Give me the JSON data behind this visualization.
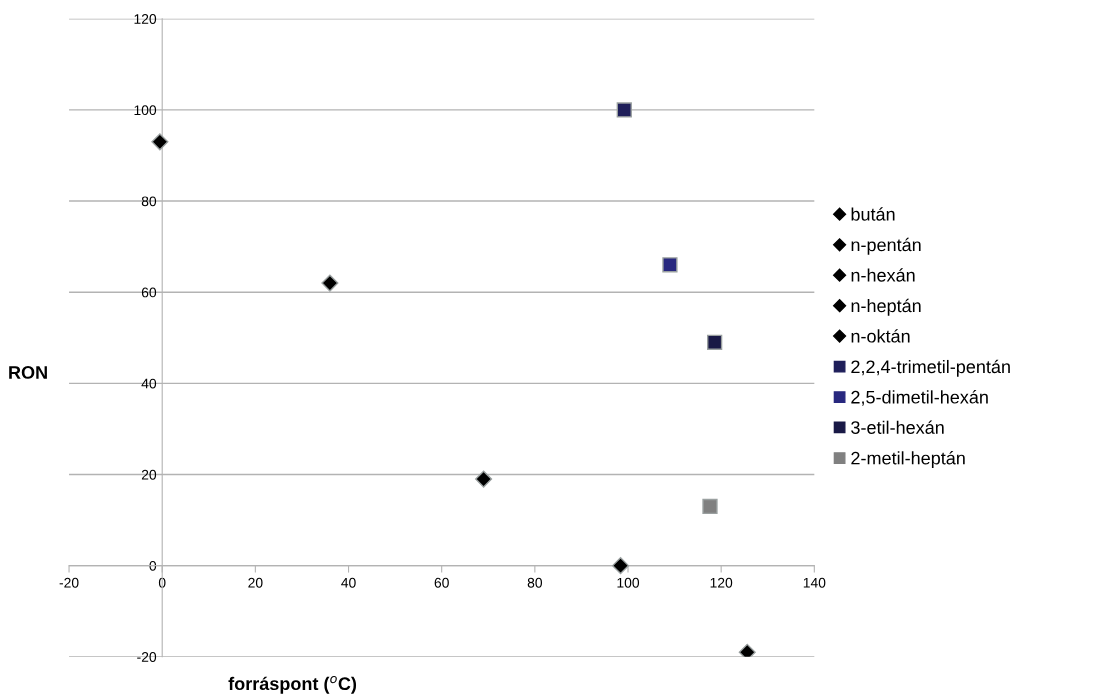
{
  "chart_data": {
    "type": "scatter",
    "xlabel": "forráspont ($^{o}$C)",
    "ylabel": "RON",
    "xlim": [
      -20,
      140
    ],
    "xticks": [
      -20,
      0,
      20,
      40,
      60,
      80,
      100,
      120,
      140
    ],
    "ylim": [
      -20,
      120
    ],
    "yticks": [
      -20,
      0,
      20,
      40,
      60,
      80,
      100,
      120
    ],
    "grid": "y",
    "legend": "right",
    "series": [
      {
        "name": "bután",
        "color": "#000000",
        "marker": "diamond",
        "x": [
          -0.5
        ],
        "values": [
          93
        ]
      },
      {
        "name": "n-pentán",
        "color": "#000000",
        "marker": "diamond",
        "x": [
          36
        ],
        "values": [
          62
        ]
      },
      {
        "name": "n-hexán",
        "color": "#000000",
        "marker": "diamond",
        "x": [
          69
        ],
        "values": [
          19
        ]
      },
      {
        "name": "n-heptán",
        "color": "#000000",
        "marker": "diamond",
        "x": [
          98.4
        ],
        "values": [
          0
        ]
      },
      {
        "name": "n-oktán",
        "color": "#000000",
        "marker": "diamond",
        "x": [
          125.6
        ],
        "values": [
          -19
        ]
      },
      {
        "name": "2,2,4-trimetil-pentán",
        "color": "#1f1f5a",
        "marker": "square",
        "x": [
          99.2
        ],
        "values": [
          100
        ]
      },
      {
        "name": "2,5-dimetil-hexán",
        "color": "#28287f",
        "marker": "square",
        "x": [
          109
        ],
        "values": [
          66
        ]
      },
      {
        "name": "3-etil-hexán",
        "color": "#191946",
        "marker": "square",
        "x": [
          118.6
        ],
        "values": [
          49
        ]
      },
      {
        "name": "2-metil-heptán",
        "color": "#808080",
        "marker": "square",
        "x": [
          117.6
        ],
        "values": [
          13
        ]
      }
    ]
  }
}
